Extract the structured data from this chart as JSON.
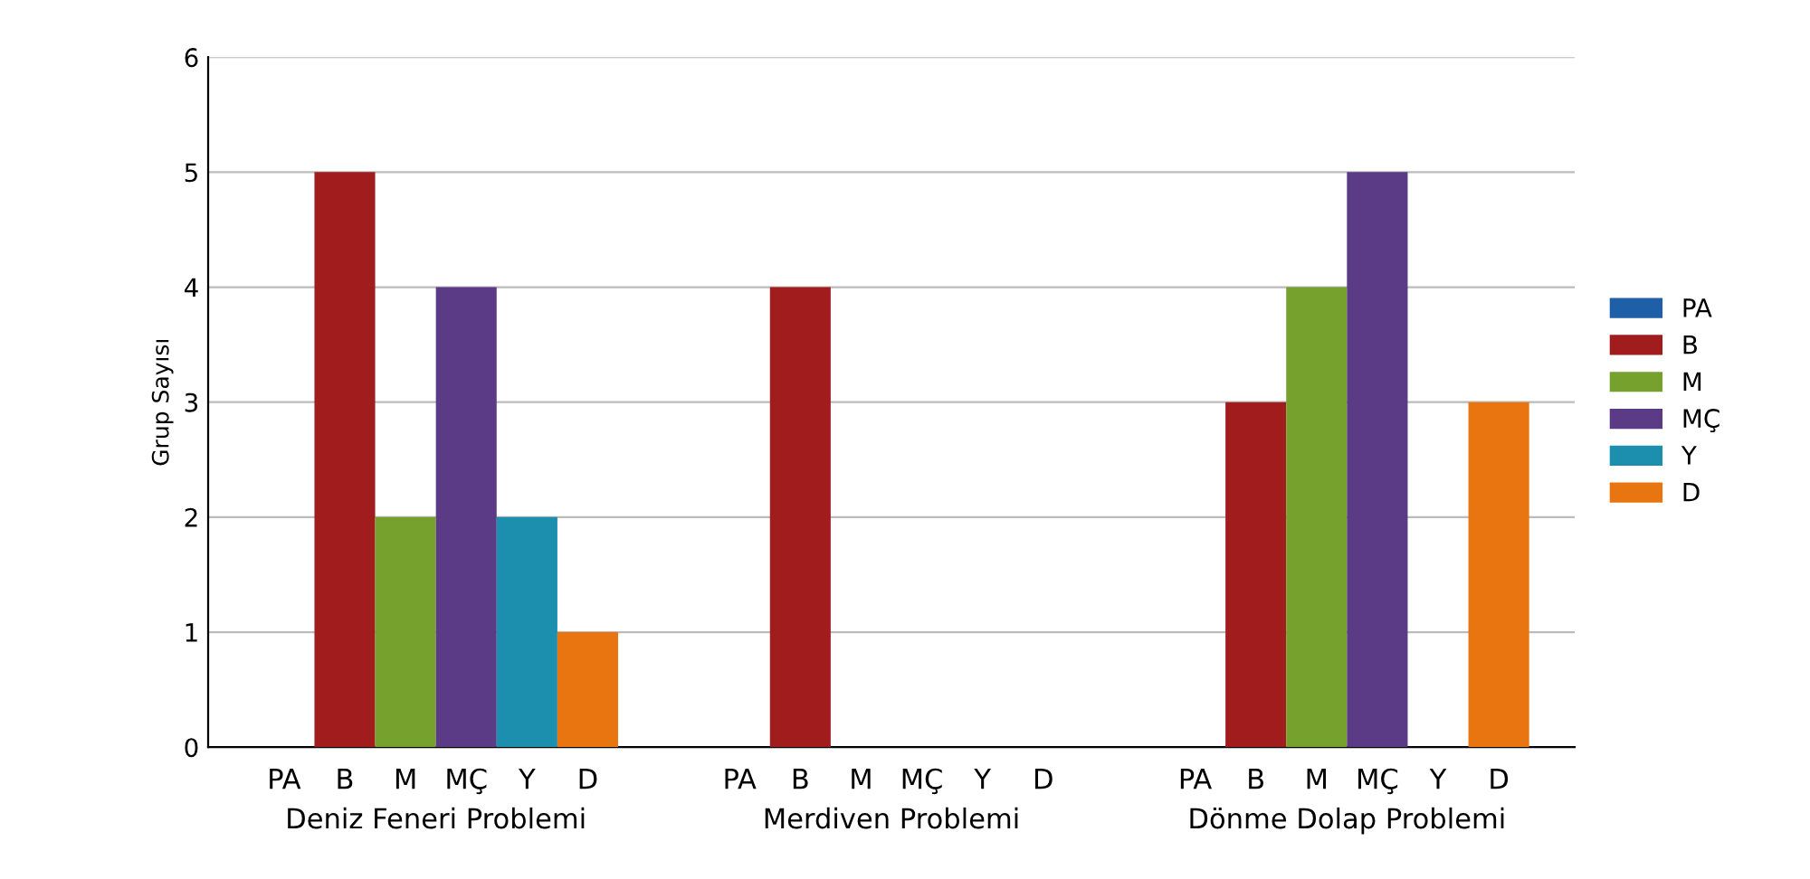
{
  "chart_data": {
    "type": "bar",
    "ylabel": "Grup Sayısı",
    "categories": [
      "Deniz Feneri Problemi",
      "Merdiven Problemi",
      "Dönme Dolap Problemi"
    ],
    "series": [
      {
        "name": "PA",
        "color": "#1f5fa8",
        "values": [
          0,
          0,
          0
        ]
      },
      {
        "name": "B",
        "color": "#a11d1d",
        "values": [
          5,
          4,
          3
        ]
      },
      {
        "name": "M",
        "color": "#76a12c",
        "values": [
          2,
          0,
          4
        ]
      },
      {
        "name": "MÇ",
        "color": "#5b3a86",
        "values": [
          4,
          0,
          5
        ]
      },
      {
        "name": "Y",
        "color": "#1b8fad",
        "values": [
          2,
          0,
          0
        ]
      },
      {
        "name": "D",
        "color": "#e8750f",
        "values": [
          1,
          0,
          3
        ]
      }
    ],
    "ylim": [
      0,
      6
    ],
    "yticks": [
      0,
      1,
      2,
      3,
      4,
      5,
      6
    ],
    "grid": "y",
    "legend": "right"
  }
}
